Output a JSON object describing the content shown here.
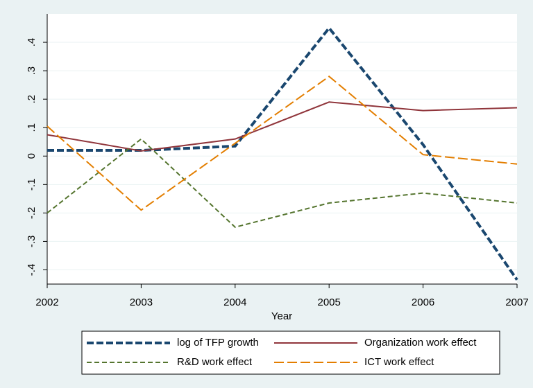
{
  "chart_data": {
    "type": "line",
    "x_label": "Year",
    "x": [
      2002,
      2003,
      2004,
      2005,
      2006,
      2007
    ],
    "xlim": [
      2002,
      2007
    ],
    "xticks": [
      2002,
      2003,
      2004,
      2005,
      2006,
      2007
    ],
    "ylim": [
      -0.45,
      0.5
    ],
    "yticks": [
      {
        "value": -0.4,
        "label": "-.4"
      },
      {
        "value": -0.3,
        "label": "-.3"
      },
      {
        "value": -0.2,
        "label": "-.2"
      },
      {
        "value": -0.1,
        "label": "-.1"
      },
      0,
      {
        "value": 0.1,
        "label": ".1"
      },
      {
        "value": 0.2,
        "label": ".2"
      },
      {
        "value": 0.3,
        "label": ".3"
      },
      {
        "value": 0.4,
        "label": ".4"
      }
    ],
    "grid": true,
    "legend_position": "bottom",
    "series": [
      {
        "name": "log of TFP growth",
        "color": "#1a476f",
        "dash": "10,4",
        "width": 4,
        "values": [
          0.02,
          0.02,
          0.035,
          0.45,
          0.04,
          -0.435
        ]
      },
      {
        "name": "Organization work effect",
        "color": "#90353b",
        "dash": "none",
        "width": 2,
        "values": [
          0.075,
          0.018,
          0.06,
          0.19,
          0.16,
          0.17
        ]
      },
      {
        "name": "R&D work effect",
        "color": "#55752f",
        "dash": "7,4",
        "width": 2,
        "values": [
          -0.2,
          0.06,
          -0.25,
          -0.165,
          -0.13,
          -0.165
        ]
      },
      {
        "name": "ICT work effect",
        "color": "#e37e00",
        "dash": "14,5",
        "width": 2,
        "values": [
          0.105,
          -0.19,
          0.045,
          0.28,
          0.005,
          -0.028
        ]
      }
    ]
  }
}
